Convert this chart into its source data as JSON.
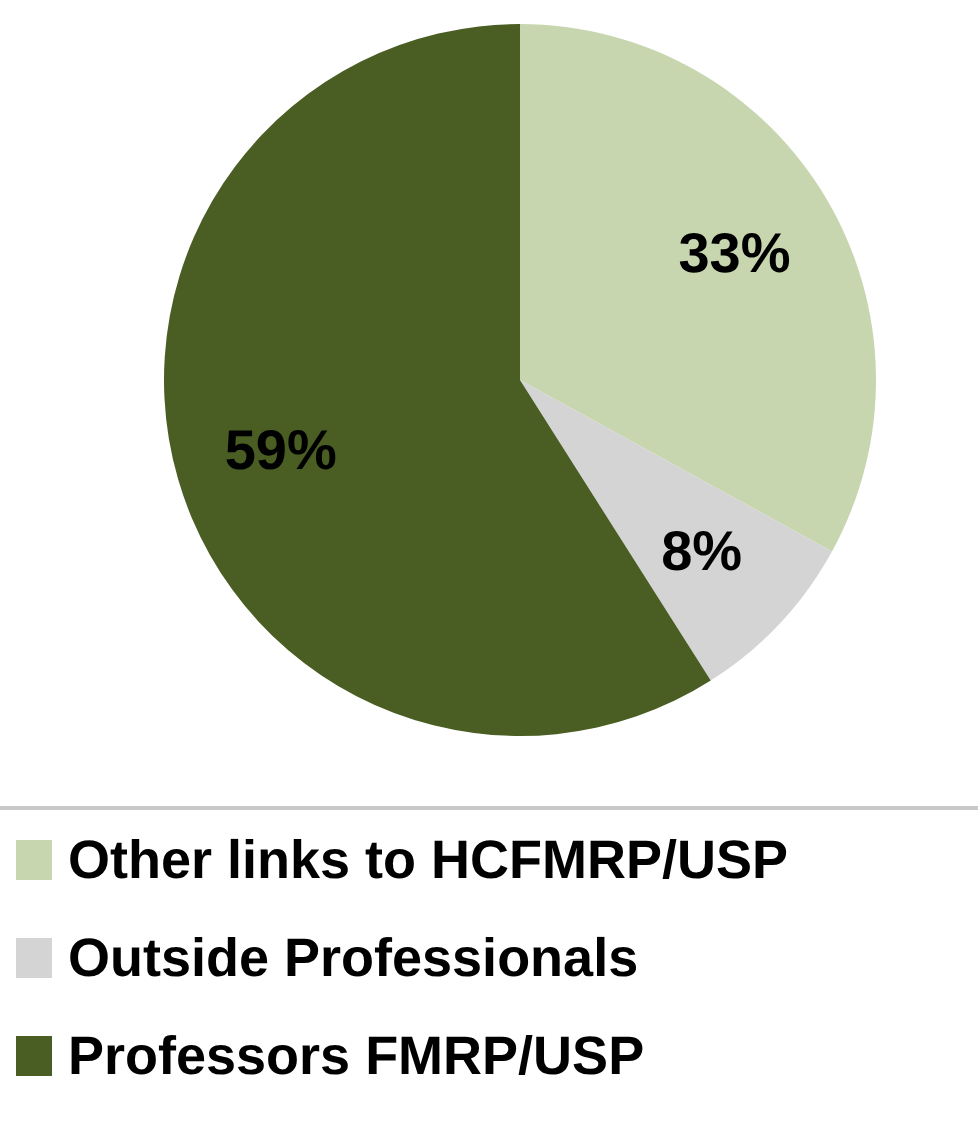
{
  "chart_data": {
    "type": "pie",
    "categories": [
      "Other links to HCFMRP/USP",
      "Outside Professionals",
      "Professors FMRP/USP"
    ],
    "values": [
      33,
      8,
      59
    ],
    "colors": [
      "#c8d6b0",
      "#d4d4d4",
      "#4a5e23"
    ],
    "value_labels": [
      "33%",
      "8%",
      "59%"
    ],
    "legend": "bottom"
  }
}
